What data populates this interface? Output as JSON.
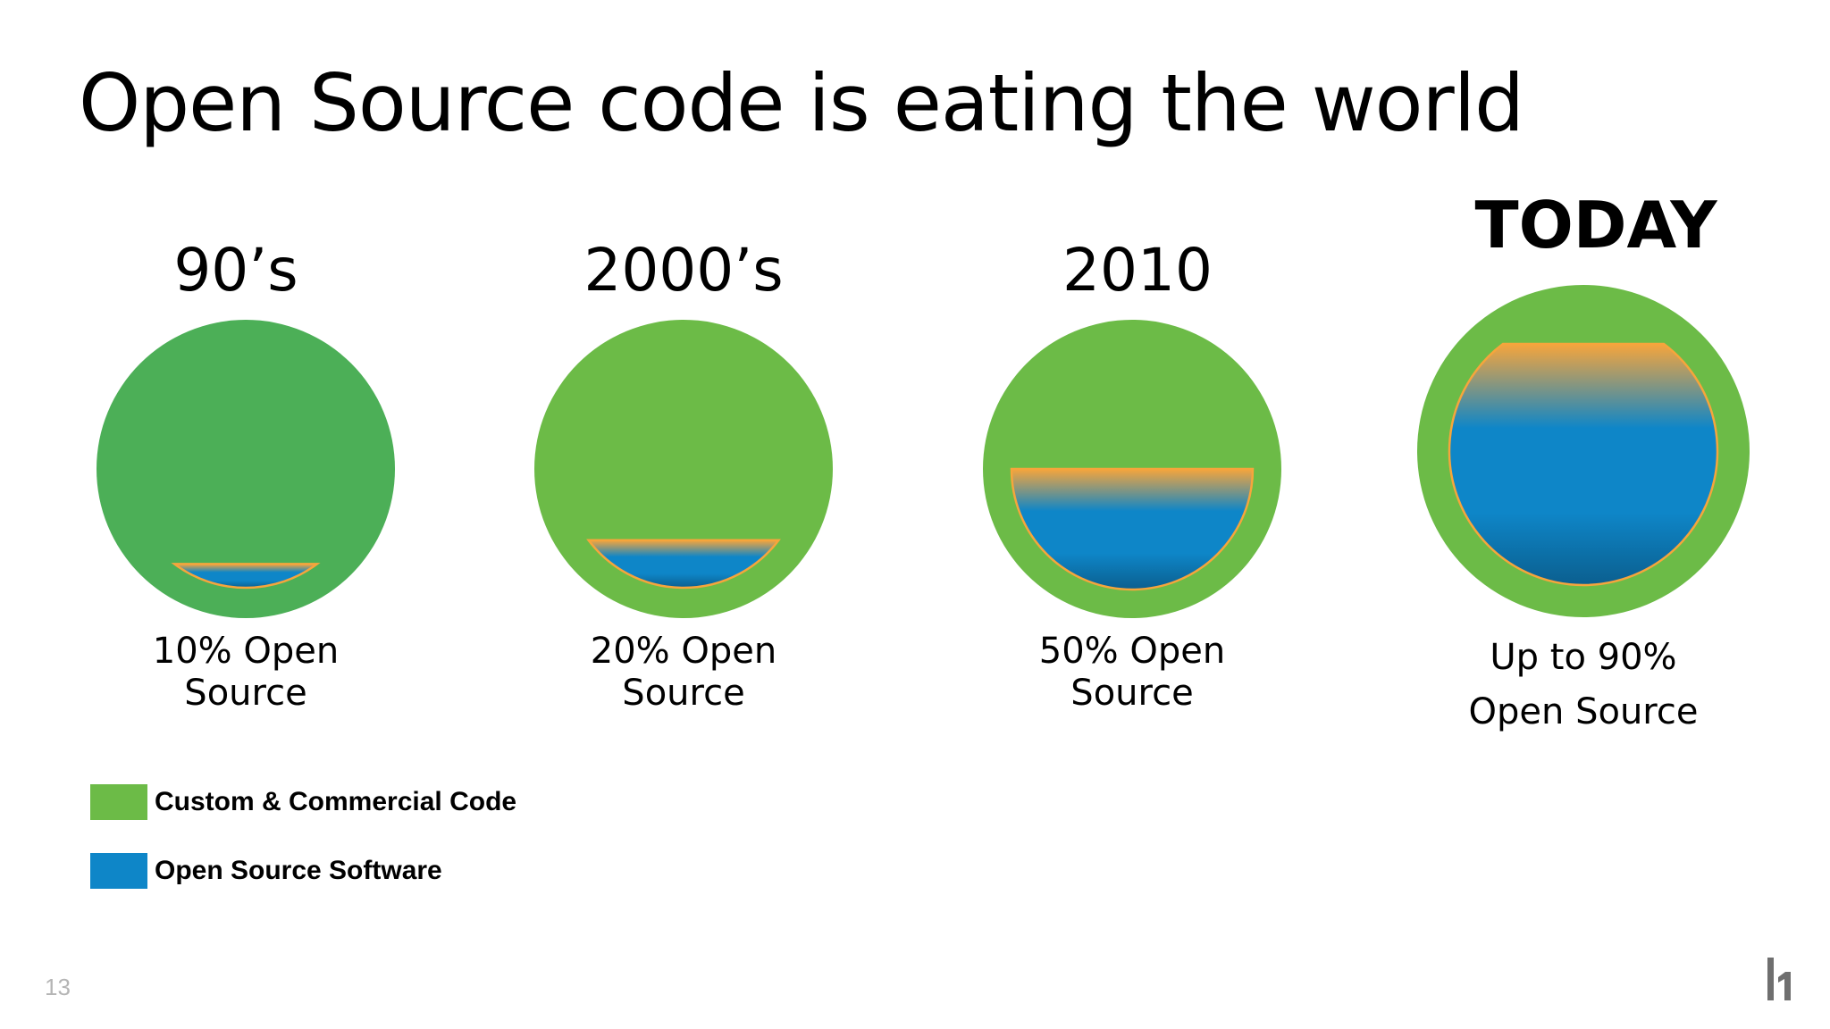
{
  "title": "Open Source code is eating the world",
  "colors": {
    "custom_code": "#6cbb47",
    "custom_code_dark": "#4caf57",
    "open_source": "#0e86c8",
    "open_source_deep": "#0b5f8f",
    "rim": "#f6a53c"
  },
  "eras": [
    {
      "label": "90’s",
      "caption_line1": "10% Open",
      "caption_line2": "Source",
      "open_source_share": 0.1
    },
    {
      "label": "2000’s",
      "caption_line1": "20% Open",
      "caption_line2": "Source",
      "open_source_share": 0.2
    },
    {
      "label": "2010",
      "caption_line1": "50% Open",
      "caption_line2": "Source",
      "open_source_share": 0.5
    },
    {
      "label": "TODAY",
      "caption_line1": "Up to 90%",
      "caption_line2": "Open Source",
      "open_source_share": 0.9
    }
  ],
  "legend": [
    {
      "label": "Custom & Commercial Code",
      "icon": "green-swatch"
    },
    {
      "label": "Open Source Software",
      "icon": "blue-swatch"
    }
  ],
  "page_number": "13",
  "logo_icon": "hackerone-logo-icon"
}
